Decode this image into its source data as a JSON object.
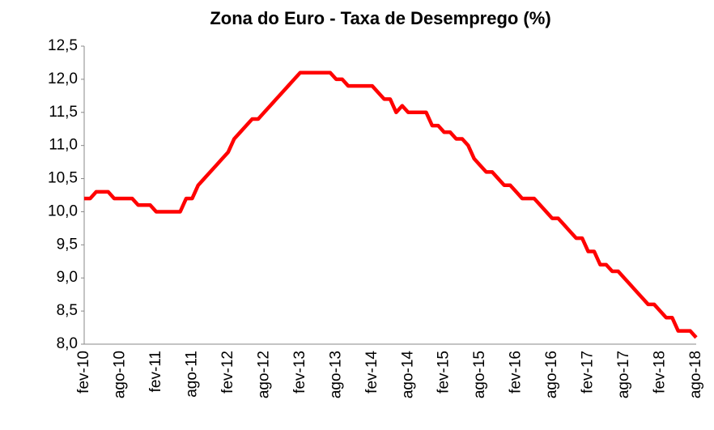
{
  "chart_data": {
    "type": "line",
    "title": "Zona do Euro - Taxa de Desemprego (%)",
    "categories": [
      "fev-10",
      null,
      null,
      null,
      null,
      null,
      "ago-10",
      null,
      null,
      null,
      null,
      null,
      "fev-11",
      null,
      null,
      null,
      null,
      null,
      "ago-11",
      null,
      null,
      null,
      null,
      null,
      "fev-12",
      null,
      null,
      null,
      null,
      null,
      "ago-12",
      null,
      null,
      null,
      null,
      null,
      "fev-13",
      null,
      null,
      null,
      null,
      null,
      "ago-13",
      null,
      null,
      null,
      null,
      null,
      "fev-14",
      null,
      null,
      null,
      null,
      null,
      "ago-14",
      null,
      null,
      null,
      null,
      null,
      "fev-15",
      null,
      null,
      null,
      null,
      null,
      "ago-15",
      null,
      null,
      null,
      null,
      null,
      "fev-16",
      null,
      null,
      null,
      null,
      null,
      "ago-16",
      null,
      null,
      null,
      null,
      null,
      "fev-17",
      null,
      null,
      null,
      null,
      null,
      "ago-17",
      null,
      null,
      null,
      null,
      null,
      "fev-18",
      null,
      null,
      null,
      null,
      null,
      "ago-18"
    ],
    "values": [
      10.2,
      10.2,
      10.3,
      10.3,
      10.3,
      10.2,
      10.2,
      10.2,
      10.2,
      10.1,
      10.1,
      10.1,
      10.0,
      10.0,
      10.0,
      10.0,
      10.0,
      10.2,
      10.2,
      10.4,
      10.5,
      10.6,
      10.7,
      10.8,
      10.9,
      11.1,
      11.2,
      11.3,
      11.4,
      11.4,
      11.5,
      11.6,
      11.7,
      11.8,
      11.9,
      12.0,
      12.1,
      12.1,
      12.1,
      12.1,
      12.1,
      12.1,
      12.0,
      12.0,
      11.9,
      11.9,
      11.9,
      11.9,
      11.9,
      11.8,
      11.7,
      11.7,
      11.5,
      11.6,
      11.5,
      11.5,
      11.5,
      11.5,
      11.3,
      11.3,
      11.2,
      11.2,
      11.1,
      11.1,
      11.0,
      10.8,
      10.7,
      10.6,
      10.6,
      10.5,
      10.4,
      10.4,
      10.3,
      10.2,
      10.2,
      10.2,
      10.1,
      10.0,
      9.9,
      9.9,
      9.8,
      9.7,
      9.6,
      9.6,
      9.4,
      9.4,
      9.2,
      9.2,
      9.1,
      9.1,
      9.0,
      8.9,
      8.8,
      8.7,
      8.6,
      8.6,
      8.5,
      8.4,
      8.4,
      8.2,
      8.2,
      8.2,
      8.1
    ],
    "color": "#ff0000",
    "ylim": [
      8.0,
      12.5
    ],
    "yticks": [
      {
        "value": 8.0,
        "label": "8,0"
      },
      {
        "value": 8.5,
        "label": "8,5"
      },
      {
        "value": 9.0,
        "label": "9,0"
      },
      {
        "value": 9.5,
        "label": "9,5"
      },
      {
        "value": 10.0,
        "label": "10,0"
      },
      {
        "value": 10.5,
        "label": "10,5"
      },
      {
        "value": 11.0,
        "label": "11,0"
      },
      {
        "value": 11.5,
        "label": "11,5"
      },
      {
        "value": 12.0,
        "label": "12,0"
      },
      {
        "value": 12.5,
        "label": "12,5"
      }
    ],
    "grid": false
  }
}
